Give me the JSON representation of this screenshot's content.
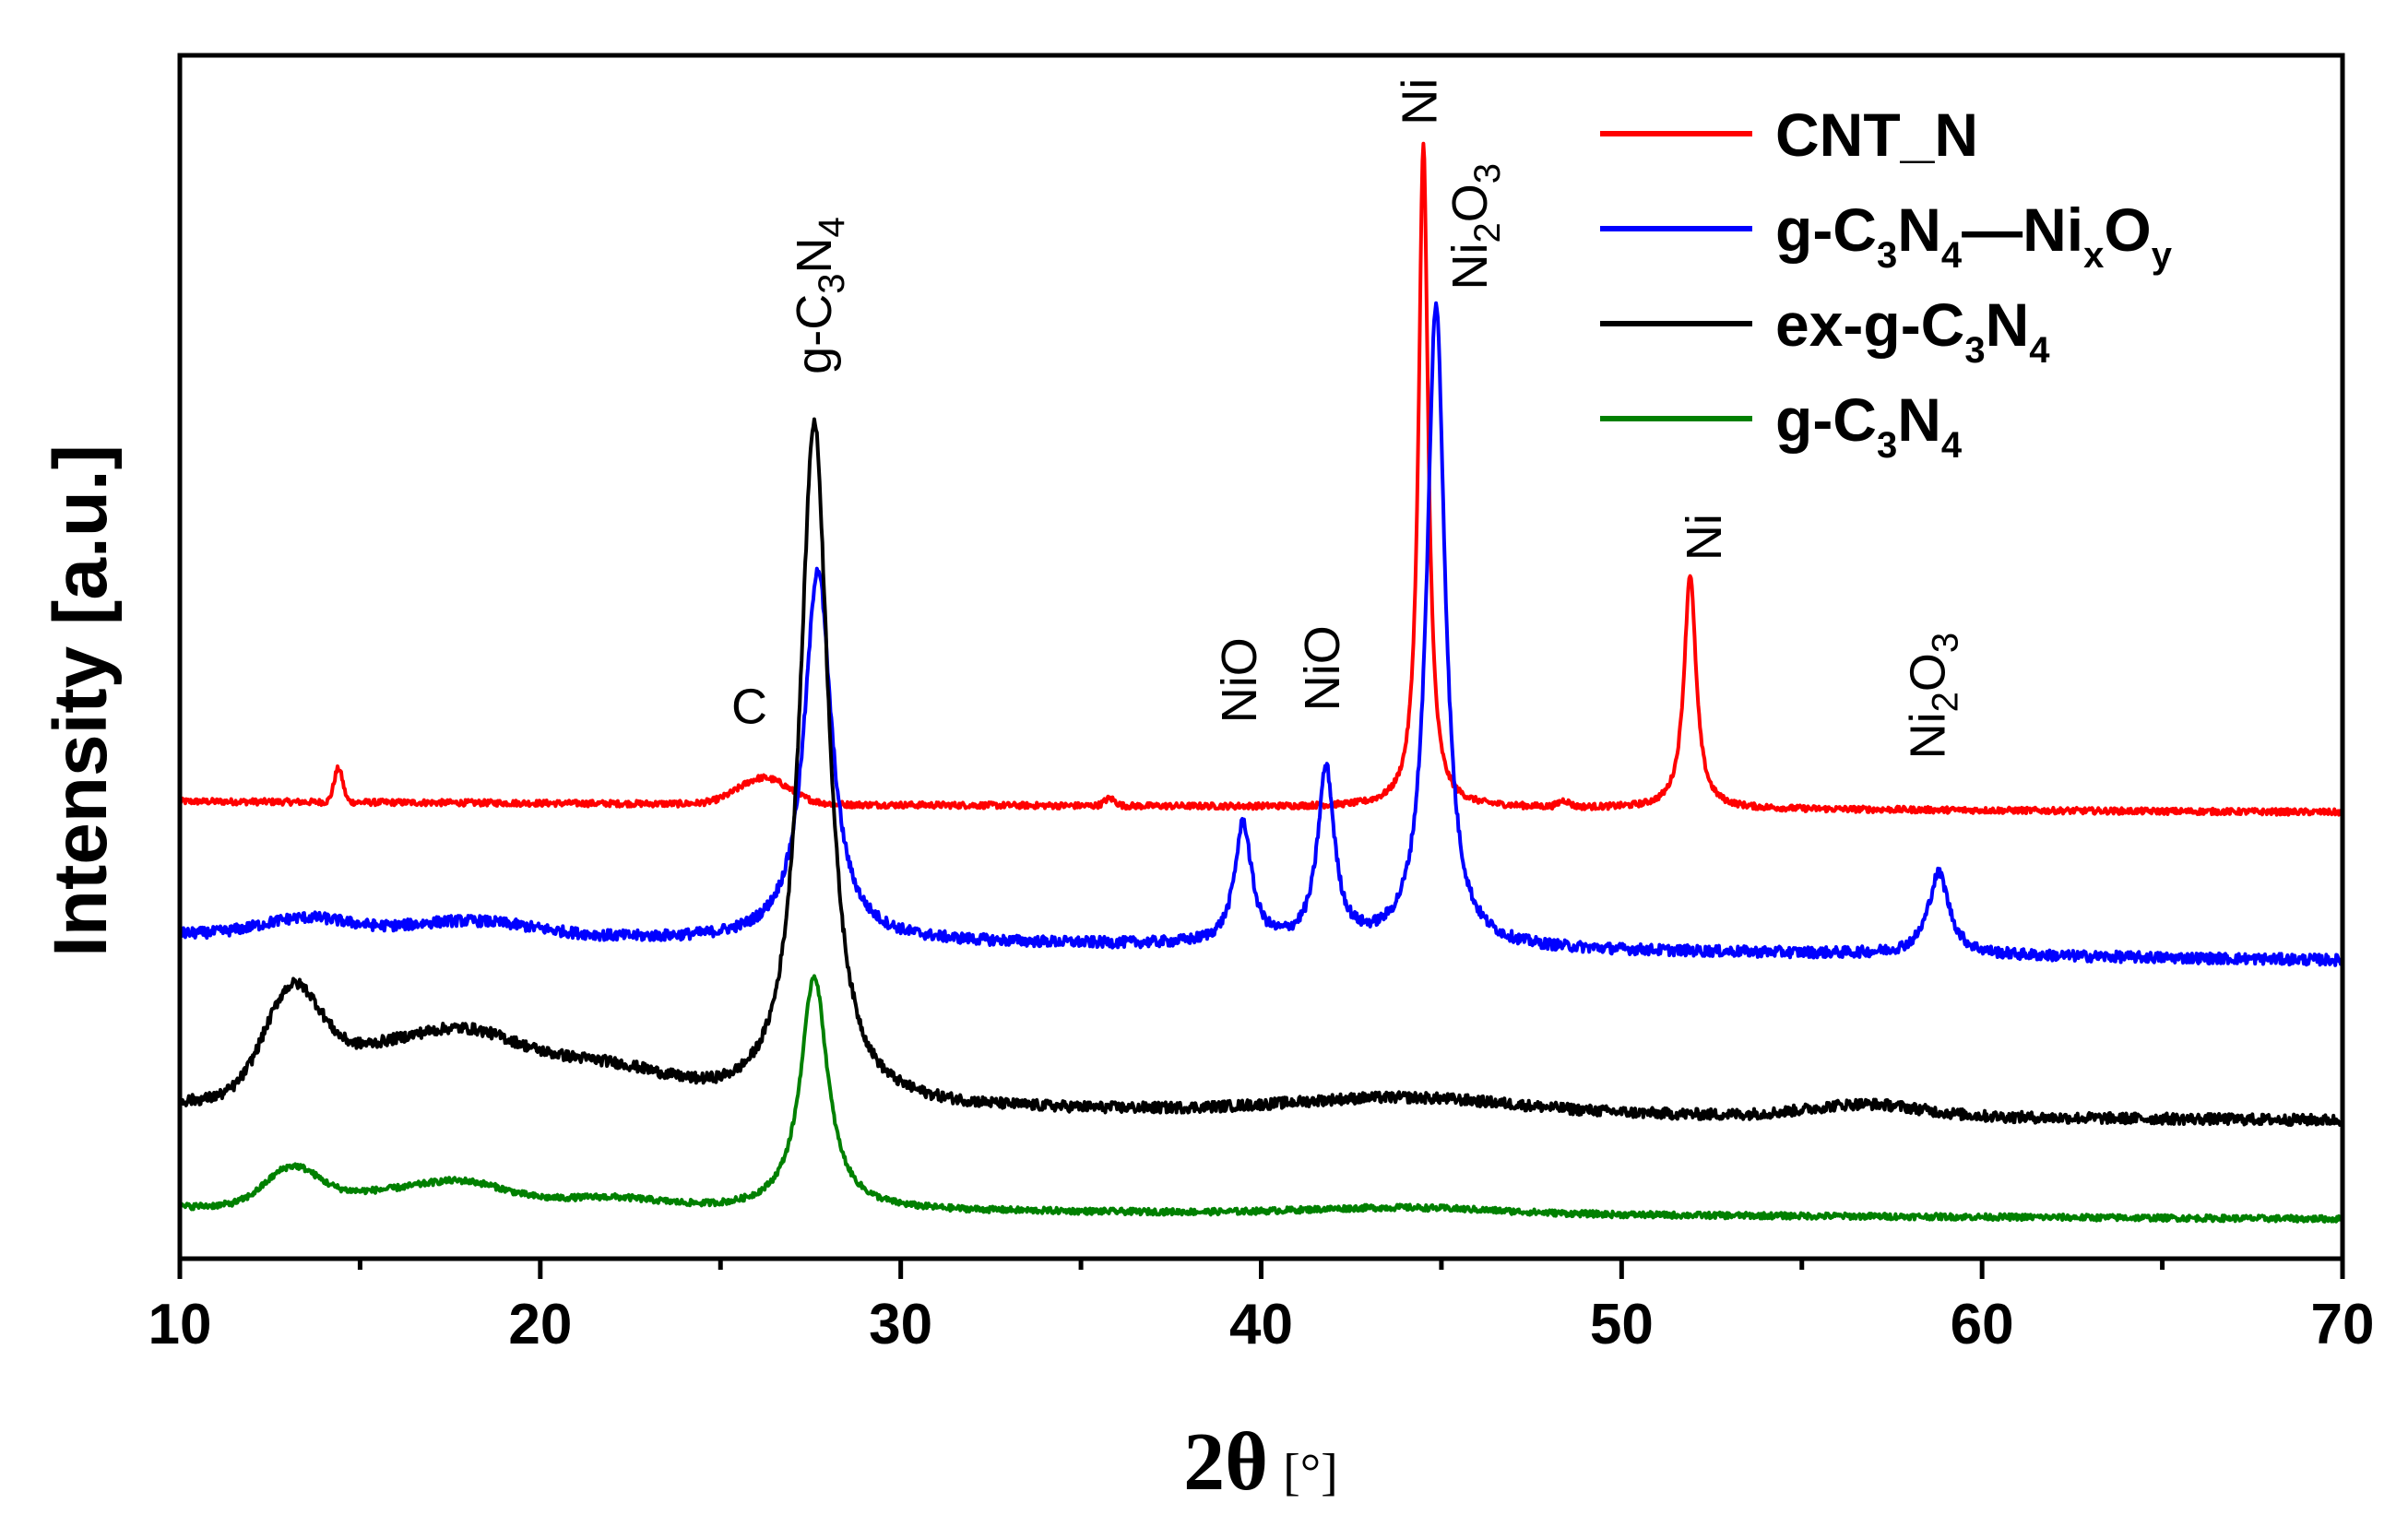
{
  "chart_data": {
    "type": "line",
    "title": "",
    "xlabel_main": "2θ",
    "xlabel_unit": "[°]",
    "ylabel": "Intensity [a.u.]",
    "xlim": [
      10,
      70
    ],
    "ylim": [
      0,
      100
    ],
    "x_ticks": [
      10,
      20,
      30,
      40,
      50,
      60,
      70
    ],
    "x_tick_labels": [
      "10",
      "20",
      "30",
      "40",
      "50",
      "60",
      "70"
    ],
    "legend_position": "top-right",
    "series": [
      {
        "name": "CNT_N",
        "legend_parts": [
          [
            "CNT_N",
            ""
          ]
        ],
        "color": "#ff0000",
        "baseline": 38,
        "baseline_drift": -0.9,
        "noise": 0.25,
        "features": [
          {
            "x": 14.4,
            "height": 2.8,
            "width": 0.12,
            "shape": "gauss"
          },
          {
            "x": 26.2,
            "height": 2.2,
            "width": 0.7,
            "shape": "gauss"
          },
          {
            "x": 35.8,
            "height": 0.6,
            "width": 0.15,
            "shape": "gauss"
          },
          {
            "x": 48.4,
            "height": 0.5,
            "width": 0.15,
            "shape": "gauss"
          },
          {
            "x": 44.5,
            "height": 55,
            "width": 0.16,
            "shape": "lorentz"
          },
          {
            "x": 51.9,
            "height": 19.5,
            "width": 0.2,
            "shape": "lorentz"
          }
        ]
      },
      {
        "name": "g-C3N4_NixOy",
        "legend_parts": [
          [
            "g-C",
            ""
          ],
          [
            "3",
            "sub"
          ],
          [
            "N",
            ""
          ],
          [
            "4",
            "sub"
          ],
          [
            "—Ni",
            ""
          ],
          [
            "x",
            "sub"
          ],
          [
            "O",
            ""
          ],
          [
            "y",
            "sub"
          ]
        ],
        "color": "#0000ff",
        "baseline": 27,
        "baseline_drift": -2.2,
        "noise": 0.45,
        "features": [
          {
            "x": 13.5,
            "height": 1.4,
            "width": 1.2,
            "shape": "gauss"
          },
          {
            "x": 18.0,
            "height": 1.3,
            "width": 1.8,
            "shape": "gauss"
          },
          {
            "x": 27.7,
            "height": 31,
            "width": 0.45,
            "shape": "lorentz"
          },
          {
            "x": 39.5,
            "height": 10,
            "width": 0.28,
            "shape": "lorentz"
          },
          {
            "x": 41.8,
            "height": 14.5,
            "width": 0.28,
            "shape": "lorentz"
          },
          {
            "x": 44.85,
            "height": 53.5,
            "width": 0.3,
            "shape": "lorentz"
          },
          {
            "x": 58.8,
            "height": 6.8,
            "width": 0.35,
            "shape": "lorentz"
          }
        ]
      },
      {
        "name": "ex-g-C3N4",
        "legend_parts": [
          [
            "ex-g-C",
            ""
          ],
          [
            "3",
            "sub"
          ],
          [
            "N",
            ""
          ],
          [
            "4",
            "sub"
          ]
        ],
        "color": "#000000",
        "baseline": 13,
        "baseline_drift": -1.5,
        "noise": 0.45,
        "features": [
          {
            "x": 13.1,
            "height": 7.5,
            "width": 0.75,
            "shape": "gauss"
          },
          {
            "x": 15.0,
            "height": 4.0,
            "width": 1.8,
            "shape": "gauss"
          },
          {
            "x": 18.0,
            "height": 4.5,
            "width": 1.5,
            "shape": "gauss"
          },
          {
            "x": 21.5,
            "height": 3.2,
            "width": 2.0,
            "shape": "gauss"
          },
          {
            "x": 27.6,
            "height": 57,
            "width": 0.48,
            "shape": "lorentz"
          },
          {
            "x": 44.0,
            "height": 1.2,
            "width": 3.0,
            "shape": "gauss"
          },
          {
            "x": 56.8,
            "height": 1.0,
            "width": 1.5,
            "shape": "gauss"
          }
        ]
      },
      {
        "name": "g-C3N4",
        "legend_parts": [
          [
            "g-C",
            ""
          ],
          [
            "3",
            "sub"
          ],
          [
            "N",
            ""
          ],
          [
            "4",
            "sub"
          ]
        ],
        "color": "#008000",
        "baseline": 4.3,
        "baseline_drift": -1.0,
        "noise": 0.25,
        "features": [
          {
            "x": 13.1,
            "height": 2.8,
            "width": 0.7,
            "shape": "gauss"
          },
          {
            "x": 15.5,
            "height": 1.3,
            "width": 2.0,
            "shape": "gauss"
          },
          {
            "x": 18.0,
            "height": 1.6,
            "width": 1.2,
            "shape": "gauss"
          },
          {
            "x": 21.8,
            "height": 0.9,
            "width": 1.5,
            "shape": "gauss"
          },
          {
            "x": 27.6,
            "height": 19.5,
            "width": 0.45,
            "shape": "lorentz"
          },
          {
            "x": 44.0,
            "height": 0.5,
            "width": 2.5,
            "shape": "gauss"
          }
        ]
      }
    ],
    "annotations": [
      {
        "name": "ann-c",
        "parts": [
          [
            "C",
            ""
          ]
        ],
        "x": 25.8,
        "y": 44.5,
        "rotate": false
      },
      {
        "name": "ann-g-c3n4",
        "parts": [
          [
            "g-C",
            ""
          ],
          [
            "3",
            "sub"
          ],
          [
            "N",
            ""
          ],
          [
            "4",
            "sub"
          ]
        ],
        "x": 27.6,
        "y": 73.5,
        "rotate": true
      },
      {
        "name": "ann-nio-1",
        "parts": [
          [
            "NiO",
            ""
          ]
        ],
        "x": 39.4,
        "y": 44.5,
        "rotate": true
      },
      {
        "name": "ann-nio-2",
        "parts": [
          [
            "NiO",
            ""
          ]
        ],
        "x": 41.7,
        "y": 45.5,
        "rotate": true
      },
      {
        "name": "ann-ni-1",
        "parts": [
          [
            "Ni",
            ""
          ]
        ],
        "x": 44.4,
        "y": 94.2,
        "rotate": true
      },
      {
        "name": "ann-ni2o3-1",
        "parts": [
          [
            "Ni",
            ""
          ],
          [
            "2",
            "sub"
          ],
          [
            "O",
            ""
          ],
          [
            "3",
            "sub"
          ]
        ],
        "x": 45.8,
        "y": 80.5,
        "rotate": true
      },
      {
        "name": "ann-ni-2",
        "parts": [
          [
            "Ni",
            ""
          ]
        ],
        "x": 52.3,
        "y": 58,
        "rotate": true
      },
      {
        "name": "ann-ni2o3-2",
        "parts": [
          [
            "Ni",
            ""
          ],
          [
            "2",
            "sub"
          ],
          [
            "O",
            ""
          ],
          [
            "3",
            "sub"
          ]
        ],
        "x": 58.5,
        "y": 41.5,
        "rotate": true
      }
    ]
  }
}
